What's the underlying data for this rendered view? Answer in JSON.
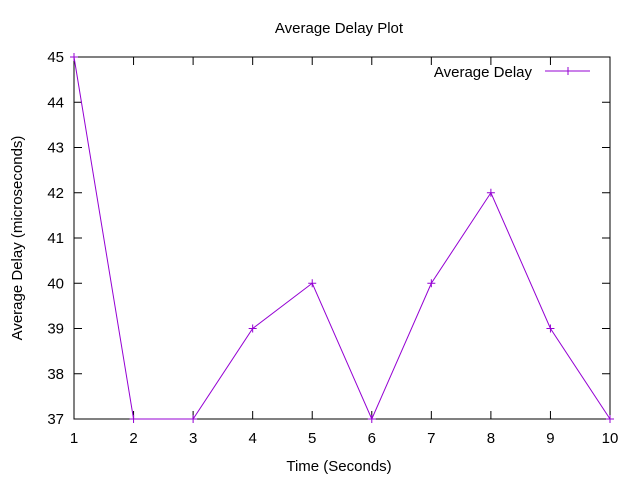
{
  "chart_data": {
    "type": "line",
    "title": "Average Delay Plot",
    "xlabel": "Time (Seconds)",
    "ylabel": "Average Delay (microseconds)",
    "x": [
      1,
      2,
      3,
      4,
      5,
      6,
      7,
      8,
      9,
      10
    ],
    "xlim": [
      1,
      10
    ],
    "ylim": [
      37,
      45
    ],
    "xticks": [
      "1",
      "2",
      "3",
      "4",
      "5",
      "6",
      "7",
      "8",
      "9",
      "10"
    ],
    "yticks": [
      "37",
      "38",
      "39",
      "40",
      "41",
      "42",
      "43",
      "44",
      "45"
    ],
    "grid": false,
    "legend_position": "top-right",
    "series": [
      {
        "name": "Average Delay",
        "color": "#9400d3",
        "marker": "plus",
        "values": [
          45,
          37,
          37,
          39,
          40,
          37,
          40,
          42,
          39,
          37
        ]
      }
    ]
  }
}
